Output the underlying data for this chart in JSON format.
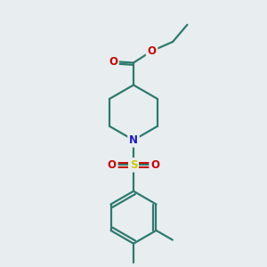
{
  "bg_color": "#e8edf0",
  "bond_color": "#2d7a6e",
  "N_color": "#1a1acc",
  "S_color": "#cccc00",
  "O_color": "#cc0000",
  "line_width": 1.6,
  "font_size": 8.5,
  "xlim": [
    0,
    10
  ],
  "ylim": [
    0,
    10
  ]
}
